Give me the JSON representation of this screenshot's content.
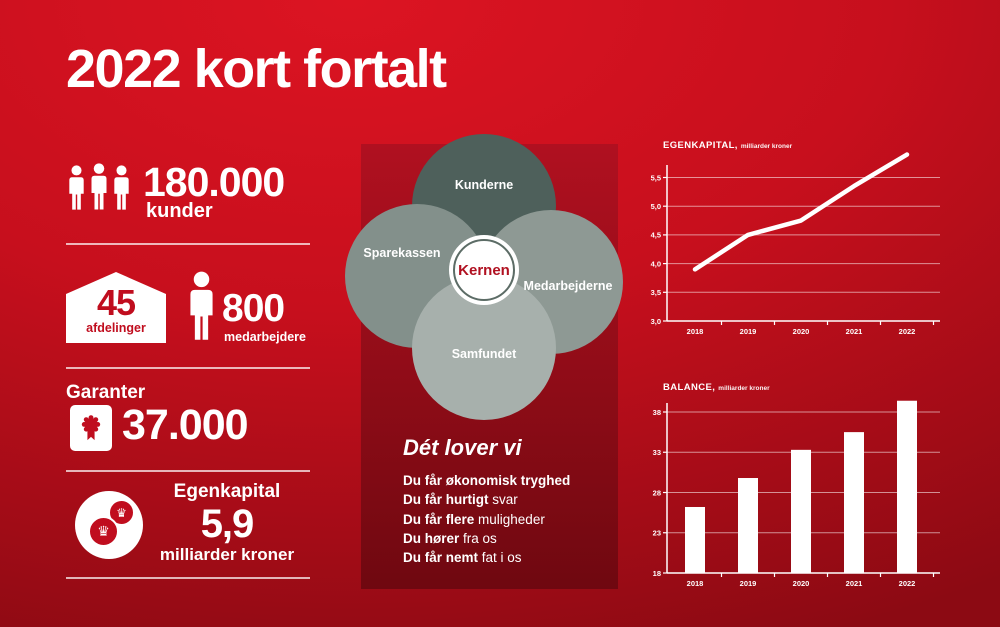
{
  "header": {
    "title": "2022 kort fortalt"
  },
  "stats": {
    "customers": {
      "value": "180.000",
      "label": "kunder",
      "icon": "people-icon"
    },
    "branches": {
      "value": "45",
      "label": "afdelinger",
      "icon": "house-icon"
    },
    "employees": {
      "value": "800",
      "label": "medarbejdere",
      "icon": "person-icon"
    },
    "guarantors": {
      "heading": "Garanter",
      "value": "37.000",
      "icon": "rosette-icon"
    },
    "equity": {
      "heading": "Egenkapital",
      "value": "5,9",
      "label": "milliarder kroner",
      "icon": "crown-coins-icon"
    }
  },
  "venn": {
    "circles": [
      {
        "label": "Kunderne",
        "color": "#4e605b"
      },
      {
        "label": "Sparekassen",
        "color": "#83908b"
      },
      {
        "label": "Medarbejderne",
        "color": "#8e9994"
      },
      {
        "label": "Samfundet",
        "color": "#a7b0ac"
      }
    ],
    "center": {
      "label": "Kernen",
      "ring_color": "#5c6c66",
      "text_color": "#b01020"
    }
  },
  "promises": {
    "heading": "Dét lover vi",
    "items": [
      {
        "bold": "Du får økonomisk tryghed",
        "rest": ""
      },
      {
        "bold": "Du får hurtigt",
        "rest": " svar"
      },
      {
        "bold": "Du får flere",
        "rest": " muligheder"
      },
      {
        "bold": "Du hører",
        "rest": " fra os"
      },
      {
        "bold": "Du får nemt",
        "rest": " fat i os"
      }
    ]
  },
  "chart_data": [
    {
      "type": "line",
      "title": "EGENKAPITAL,",
      "subtitle": "milliarder kroner",
      "categories": [
        "2018",
        "2019",
        "2020",
        "2021",
        "2022"
      ],
      "values": [
        3.9,
        4.5,
        4.75,
        5.35,
        5.9
      ],
      "yticks": [
        "3,0",
        "3,5",
        "4,0",
        "4,5",
        "5,0",
        "5,5"
      ],
      "ylim": [
        3.0,
        6.0
      ],
      "grid": true,
      "legend": "none",
      "line_color": "#ffffff"
    },
    {
      "type": "bar",
      "title": "BALANCE,",
      "subtitle": "milliarder kroner",
      "categories": [
        "2018",
        "2019",
        "2020",
        "2021",
        "2022"
      ],
      "values": [
        26.2,
        29.8,
        33.3,
        35.5,
        39.4
      ],
      "yticks": [
        "18",
        "23",
        "28",
        "33",
        "38"
      ],
      "ylim": [
        18,
        40
      ],
      "grid": true,
      "legend": "none",
      "bar_color": "#ffffff"
    }
  ],
  "colors": {
    "background_red": "#c70f1d",
    "panel_red": "#8e0c17",
    "accent_red": "#c00d1e",
    "grid_line": "rgba(255,255,255,0.55)",
    "white": "#ffffff"
  }
}
